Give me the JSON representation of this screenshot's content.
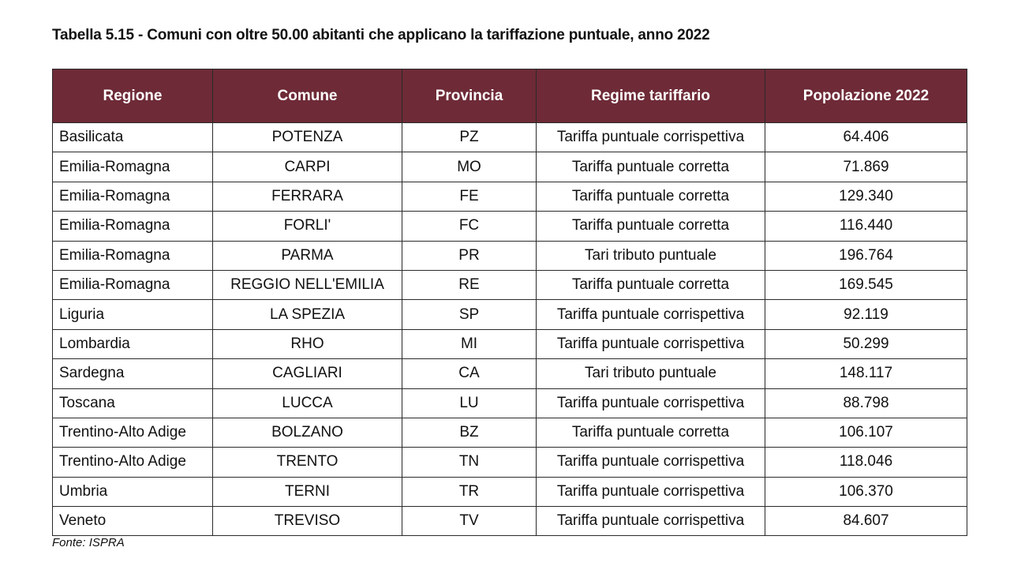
{
  "document": {
    "title": "Tabella 5.15 - Comuni con oltre 50.00 abitanti che applicano la tariffazione puntuale, anno 2022",
    "source": "Fonte: ISPRA",
    "header_color": "#6e2a37"
  },
  "table": {
    "headers": [
      "Regione",
      "Comune",
      "Provincia",
      "Regime tariffario",
      "Popolazione 2022"
    ],
    "rows": [
      [
        "Basilicata",
        "POTENZA",
        "PZ",
        "Tariffa puntuale corrispettiva",
        "64.406"
      ],
      [
        "Emilia-Romagna",
        "CARPI",
        "MO",
        "Tariffa puntuale corretta",
        "71.869"
      ],
      [
        "Emilia-Romagna",
        "FERRARA",
        "FE",
        "Tariffa puntuale corretta",
        "129.340"
      ],
      [
        "Emilia-Romagna",
        "FORLI'",
        "FC",
        "Tariffa puntuale corretta",
        "116.440"
      ],
      [
        "Emilia-Romagna",
        "PARMA",
        "PR",
        "Tari tributo puntuale",
        "196.764"
      ],
      [
        "Emilia-Romagna",
        "REGGIO NELL'EMILIA",
        "RE",
        "Tariffa puntuale corretta",
        "169.545"
      ],
      [
        "Liguria",
        "LA SPEZIA",
        "SP",
        "Tariffa puntuale corrispettiva",
        "92.119"
      ],
      [
        "Lombardia",
        "RHO",
        "MI",
        "Tariffa puntuale corrispettiva",
        "50.299"
      ],
      [
        "Sardegna",
        "CAGLIARI",
        "CA",
        "Tari tributo puntuale",
        "148.117"
      ],
      [
        "Toscana",
        "LUCCA",
        "LU",
        "Tariffa puntuale corrispettiva",
        "88.798"
      ],
      [
        "Trentino-Alto Adige",
        "BOLZANO",
        "BZ",
        "Tariffa puntuale corretta",
        "106.107"
      ],
      [
        "Trentino-Alto Adige",
        "TRENTO",
        "TN",
        "Tariffa puntuale corrispettiva",
        "118.046"
      ],
      [
        "Umbria",
        "TERNI",
        "TR",
        "Tariffa puntuale corrispettiva",
        "106.370"
      ],
      [
        "Veneto",
        "TREVISO",
        "TV",
        "Tariffa puntuale corrispettiva",
        "84.607"
      ]
    ]
  }
}
